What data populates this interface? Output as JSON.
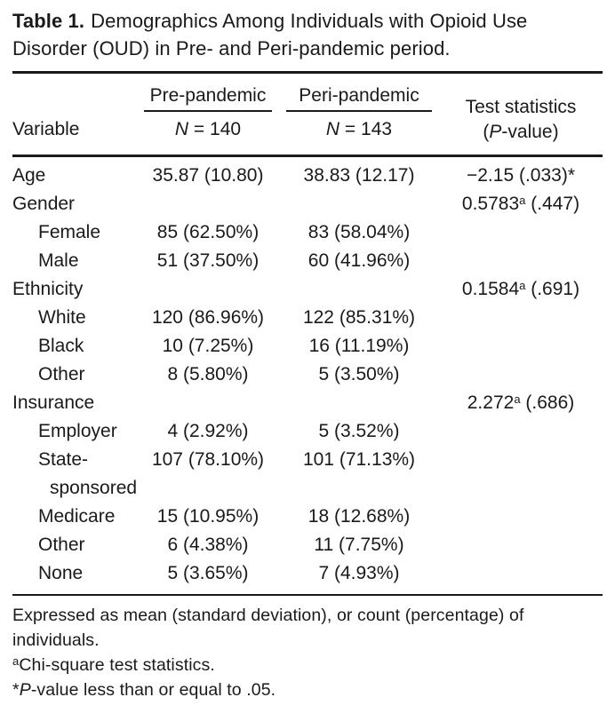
{
  "title": {
    "label": "Table 1.",
    "text": "Demographics Among Individuals with Opioid Use Disorder (OUD) in Pre- and Peri-pandemic period."
  },
  "header": {
    "variable_label": "Variable",
    "pre": {
      "label": "Pre-pandemic",
      "n_italic": "N",
      "n_rest": " = 140"
    },
    "peri": {
      "label": "Peri-pandemic",
      "n_italic": "N",
      "n_rest": " = 143"
    },
    "stat_line1": "Test statistics",
    "stat_open": "(",
    "stat_italic": "P",
    "stat_rest": "-value)"
  },
  "rows": [
    {
      "variable": "Age",
      "indent": false,
      "pre": "35.87 (10.80)",
      "peri": "38.83 (12.17)",
      "stat": "−2.15",
      "stat_sup": "",
      "stat_p": " (.033)*"
    },
    {
      "variable": "Gender",
      "indent": false,
      "pre": "",
      "peri": "",
      "stat": "0.5783",
      "stat_sup": "a",
      "stat_p": " (.447)"
    },
    {
      "variable": "Female",
      "indent": true,
      "pre": "85 (62.50%)",
      "peri": "83 (58.04%)",
      "stat": "",
      "stat_sup": "",
      "stat_p": ""
    },
    {
      "variable": "Male",
      "indent": true,
      "pre": "51 (37.50%)",
      "peri": "60 (41.96%)",
      "stat": "",
      "stat_sup": "",
      "stat_p": ""
    },
    {
      "variable": "Ethnicity",
      "indent": false,
      "pre": "",
      "peri": "",
      "stat": "0.1584",
      "stat_sup": "a",
      "stat_p": " (.691)"
    },
    {
      "variable": "White",
      "indent": true,
      "pre": "120 (86.96%)",
      "peri": "122 (85.31%)",
      "stat": "",
      "stat_sup": "",
      "stat_p": ""
    },
    {
      "variable": "Black",
      "indent": true,
      "pre": "10 (7.25%)",
      "peri": "16 (11.19%)",
      "stat": "",
      "stat_sup": "",
      "stat_p": ""
    },
    {
      "variable": "Other",
      "indent": true,
      "pre": "8 (5.80%)",
      "peri": "5 (3.50%)",
      "stat": "",
      "stat_sup": "",
      "stat_p": ""
    },
    {
      "variable": "Insurance",
      "indent": false,
      "pre": "",
      "peri": "",
      "stat": "2.272",
      "stat_sup": "a",
      "stat_p": " (.686)"
    },
    {
      "variable": "Employer",
      "indent": true,
      "pre": "4 (2.92%)",
      "peri": "5 (3.52%)",
      "stat": "",
      "stat_sup": "",
      "stat_p": ""
    },
    {
      "variable": "State-sponsored",
      "indent": true,
      "pre": "107 (78.10%)",
      "peri": "101 (71.13%)",
      "stat": "",
      "stat_sup": "",
      "stat_p": ""
    },
    {
      "variable": "Medicare",
      "indent": true,
      "pre": "15 (10.95%)",
      "peri": "18 (12.68%)",
      "stat": "",
      "stat_sup": "",
      "stat_p": ""
    },
    {
      "variable": "Other",
      "indent": true,
      "pre": "6 (4.38%)",
      "peri": "11 (7.75%)",
      "stat": "",
      "stat_sup": "",
      "stat_p": ""
    },
    {
      "variable": "None",
      "indent": true,
      "pre": "5 (3.65%)",
      "peri": "7 (4.93%)",
      "stat": "",
      "stat_sup": "",
      "stat_p": ""
    }
  ],
  "footnotes": {
    "line1": "Expressed as mean (standard deviation), or count (percentage) of individuals.",
    "line2_sup": "a",
    "line2_text": "Chi-square test statistics.",
    "line3_star": "*",
    "line3_italic": "P",
    "line3_rest": "-value less than or equal to .05."
  },
  "colors": {
    "background": "#ffffff",
    "text": "#1a1a1a",
    "rule": "#1a1a1a"
  }
}
